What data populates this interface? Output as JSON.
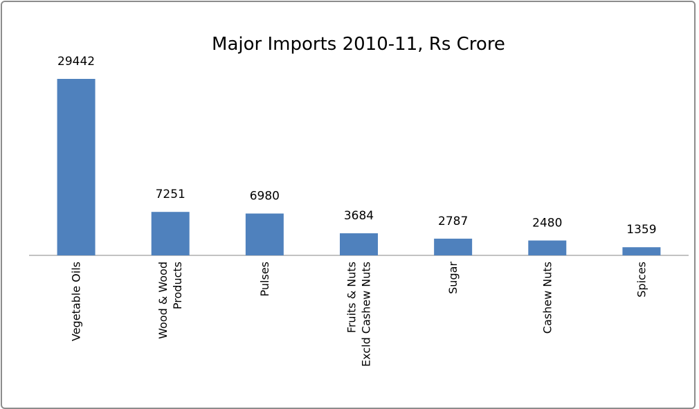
{
  "chart_data": {
    "type": "bar",
    "title": "Major Imports 2010-11, Rs Crore",
    "categories": [
      "Vegetable Oils",
      "Wood & Wood\nProducts",
      "Pulses",
      "Fruits & Nuts\nExcld Cashew Nuts",
      "Sugar",
      "Cashew Nuts",
      "Spices"
    ],
    "values": [
      29442,
      7251,
      6980,
      3684,
      2787,
      2480,
      1359
    ],
    "color": "#4f81bd"
  }
}
